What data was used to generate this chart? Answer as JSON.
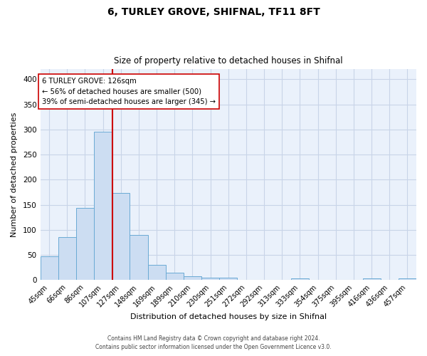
{
  "title": "6, TURLEY GROVE, SHIFNAL, TF11 8FT",
  "subtitle": "Size of property relative to detached houses in Shifnal",
  "xlabel": "Distribution of detached houses by size in Shifnal",
  "ylabel": "Number of detached properties",
  "bar_labels": [
    "45sqm",
    "66sqm",
    "86sqm",
    "107sqm",
    "127sqm",
    "148sqm",
    "169sqm",
    "189sqm",
    "210sqm",
    "230sqm",
    "251sqm",
    "272sqm",
    "292sqm",
    "313sqm",
    "333sqm",
    "354sqm",
    "375sqm",
    "395sqm",
    "416sqm",
    "436sqm",
    "457sqm"
  ],
  "bar_values": [
    47,
    86,
    144,
    296,
    174,
    90,
    30,
    14,
    7,
    4,
    4,
    0,
    0,
    0,
    3,
    0,
    0,
    0,
    3,
    0,
    3
  ],
  "bar_color": "#ccddf2",
  "bar_edge_color": "#6aaad4",
  "ylim": [
    0,
    420
  ],
  "yticks": [
    0,
    50,
    100,
    150,
    200,
    250,
    300,
    350,
    400
  ],
  "annotation_line1": "6 TURLEY GROVE: 126sqm",
  "annotation_line2": "← 56% of detached houses are smaller (500)",
  "annotation_line3": "39% of semi-detached houses are larger (345) →",
  "footer1": "Contains HM Land Registry data © Crown copyright and database right 2024.",
  "footer2": "Contains public sector information licensed under the Open Government Licence v3.0.",
  "bg_color": "#eaf1fb",
  "grid_color": "#c8d4e8",
  "vline_color": "#cc0000",
  "vline_pos": 3.52
}
